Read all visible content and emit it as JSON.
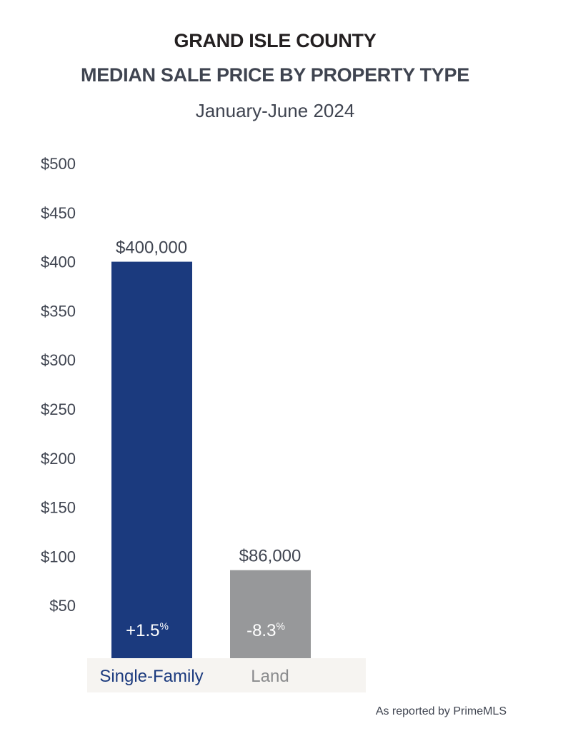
{
  "title": "GRAND ISLE COUNTY",
  "subtitle_main": "MEDIAN SALE PRICE BY PROPERTY TYPE",
  "period": "January-June 2024",
  "footnote": "As reported by PrimeMLS",
  "colors": {
    "single_family": "#1b3a7e",
    "land": "#97989a",
    "category_band": "#f6f4f1",
    "text": "#3f4450",
    "land_label": "#8a8b8d"
  },
  "chart_data": {
    "type": "bar",
    "title": "MEDIAN SALE PRICE BY PROPERTY TYPE",
    "categories": [
      "Single-Family",
      "Land"
    ],
    "values": [
      400000,
      86000
    ],
    "value_labels": [
      "$400,000",
      "$86,000"
    ],
    "changes": [
      "+1.5",
      "-8.3"
    ],
    "change_unit": "%",
    "yticks": [
      50,
      100,
      150,
      200,
      250,
      300,
      350,
      400,
      450,
      500
    ],
    "ytick_labels": [
      "$50",
      "$100",
      "$150",
      "$200",
      "$250",
      "$300",
      "$350",
      "$400",
      "$450",
      "$500"
    ],
    "ylim": [
      0,
      500000
    ],
    "grid": false,
    "legend": "none"
  }
}
